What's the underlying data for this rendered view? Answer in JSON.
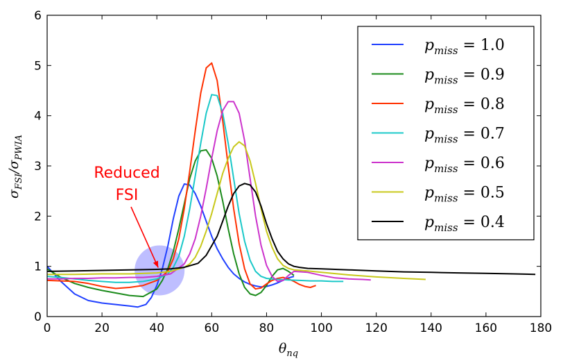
{
  "chart_data": {
    "type": "line",
    "xlim": [
      0,
      180
    ],
    "ylim": [
      0,
      6
    ],
    "xticks": [
      0,
      20,
      40,
      60,
      80,
      100,
      120,
      140,
      160,
      180
    ],
    "yticks": [
      0,
      1,
      2,
      3,
      4,
      5,
      6
    ],
    "xlabel": "θ_nq",
    "ylabel": "σ_FSI/σ_PWIA",
    "grid": false,
    "legend_placement": "top-right",
    "series": [
      {
        "name": "p_miss = 1.0",
        "color": "#1f3fff",
        "x": [
          0,
          5,
          10,
          15,
          20,
          25,
          30,
          33,
          36,
          38,
          40,
          42,
          44,
          46,
          48,
          50,
          52,
          54,
          56,
          58,
          60,
          62,
          64,
          66,
          68,
          70,
          72,
          74,
          76,
          78,
          80,
          82,
          84,
          86,
          88,
          90
        ],
        "y": [
          1.0,
          0.7,
          0.45,
          0.32,
          0.27,
          0.24,
          0.21,
          0.19,
          0.24,
          0.38,
          0.62,
          0.95,
          1.4,
          1.95,
          2.4,
          2.64,
          2.62,
          2.45,
          2.2,
          1.9,
          1.6,
          1.35,
          1.15,
          0.98,
          0.85,
          0.76,
          0.69,
          0.64,
          0.61,
          0.59,
          0.6,
          0.63,
          0.67,
          0.72,
          0.77,
          0.8
        ]
      },
      {
        "name": "p_miss = 0.9",
        "color": "#1a8a1a",
        "x": [
          0,
          5,
          10,
          15,
          20,
          25,
          30,
          35,
          40,
          42,
          44,
          46,
          48,
          50,
          52,
          54,
          56,
          58,
          60,
          62,
          64,
          66,
          68,
          70,
          72,
          74,
          76,
          78,
          80,
          82,
          84,
          86,
          88,
          90
        ],
        "y": [
          0.95,
          0.78,
          0.66,
          0.58,
          0.52,
          0.47,
          0.42,
          0.4,
          0.55,
          0.72,
          0.95,
          1.3,
          1.75,
          2.25,
          2.75,
          3.1,
          3.3,
          3.32,
          3.15,
          2.8,
          2.3,
          1.75,
          1.25,
          0.85,
          0.58,
          0.45,
          0.42,
          0.48,
          0.62,
          0.8,
          0.93,
          0.96,
          0.9,
          0.82
        ]
      },
      {
        "name": "p_miss = 0.8",
        "color": "#ff3000",
        "x": [
          0,
          5,
          10,
          15,
          20,
          25,
          30,
          35,
          40,
          44,
          46,
          48,
          50,
          52,
          54,
          56,
          58,
          60,
          62,
          64,
          66,
          68,
          70,
          72,
          74,
          76,
          78,
          80,
          82,
          84,
          86,
          88,
          90,
          92,
          94,
          96,
          98
        ],
        "y": [
          0.72,
          0.71,
          0.7,
          0.66,
          0.6,
          0.56,
          0.58,
          0.62,
          0.72,
          0.9,
          1.15,
          1.55,
          2.15,
          2.9,
          3.7,
          4.45,
          4.95,
          5.05,
          4.7,
          3.9,
          3.0,
          2.15,
          1.45,
          0.95,
          0.65,
          0.55,
          0.57,
          0.65,
          0.72,
          0.76,
          0.78,
          0.75,
          0.7,
          0.64,
          0.6,
          0.58,
          0.62
        ]
      },
      {
        "name": "p_miss = 0.7",
        "color": "#19c8c8",
        "x": [
          0,
          5,
          10,
          15,
          20,
          25,
          30,
          35,
          40,
          44,
          46,
          48,
          50,
          52,
          54,
          56,
          58,
          60,
          62,
          64,
          66,
          68,
          70,
          72,
          74,
          76,
          78,
          80,
          84,
          88,
          92,
          96,
          100,
          104,
          108
        ],
        "y": [
          0.8,
          0.78,
          0.75,
          0.72,
          0.7,
          0.68,
          0.68,
          0.7,
          0.75,
          0.85,
          0.98,
          1.2,
          1.6,
          2.15,
          2.8,
          3.45,
          4.05,
          4.42,
          4.4,
          4.05,
          3.45,
          2.75,
          2.05,
          1.5,
          1.12,
          0.9,
          0.8,
          0.76,
          0.74,
          0.73,
          0.72,
          0.71,
          0.71,
          0.7,
          0.7
        ]
      },
      {
        "name": "p_miss = 0.6",
        "color": "#cc33cc",
        "x": [
          0,
          5,
          10,
          15,
          20,
          25,
          30,
          35,
          40,
          45,
          50,
          52,
          54,
          56,
          58,
          60,
          62,
          64,
          66,
          68,
          70,
          72,
          74,
          76,
          78,
          80,
          82,
          84,
          86,
          88,
          90,
          95,
          100,
          105,
          110,
          115,
          118
        ],
        "y": [
          0.75,
          0.75,
          0.76,
          0.76,
          0.77,
          0.77,
          0.78,
          0.78,
          0.8,
          0.85,
          1.05,
          1.25,
          1.55,
          2.0,
          2.55,
          3.15,
          3.7,
          4.1,
          4.28,
          4.28,
          4.05,
          3.5,
          2.75,
          2.0,
          1.42,
          1.02,
          0.8,
          0.7,
          0.72,
          0.82,
          0.9,
          0.88,
          0.82,
          0.77,
          0.75,
          0.74,
          0.73
        ]
      },
      {
        "name": "p_miss = 0.5",
        "color": "#c8c81a",
        "x": [
          0,
          10,
          20,
          30,
          40,
          45,
          50,
          52,
          54,
          56,
          58,
          60,
          62,
          64,
          66,
          68,
          70,
          72,
          74,
          76,
          78,
          80,
          82,
          84,
          86,
          88,
          90,
          95,
          100,
          110,
          120,
          130,
          138
        ],
        "y": [
          0.84,
          0.84,
          0.85,
          0.85,
          0.87,
          0.9,
          0.98,
          1.05,
          1.18,
          1.4,
          1.7,
          2.05,
          2.45,
          2.85,
          3.15,
          3.38,
          3.48,
          3.4,
          3.1,
          2.65,
          2.15,
          1.7,
          1.38,
          1.15,
          1.02,
          0.96,
          0.93,
          0.91,
          0.88,
          0.83,
          0.79,
          0.76,
          0.74
        ]
      },
      {
        "name": "p_miss = 0.4",
        "color": "#000000",
        "x": [
          0,
          10,
          20,
          30,
          40,
          45,
          50,
          55,
          58,
          62,
          64,
          66,
          68,
          70,
          72,
          74,
          76,
          78,
          80,
          82,
          84,
          86,
          88,
          90,
          92,
          95,
          100,
          110,
          120,
          130,
          140,
          150,
          160,
          170,
          178
        ],
        "y": [
          0.9,
          0.91,
          0.92,
          0.93,
          0.94,
          0.95,
          0.98,
          1.06,
          1.22,
          1.6,
          1.9,
          2.2,
          2.45,
          2.6,
          2.65,
          2.62,
          2.48,
          2.2,
          1.85,
          1.55,
          1.3,
          1.15,
          1.05,
          1.0,
          0.98,
          0.96,
          0.95,
          0.93,
          0.91,
          0.89,
          0.88,
          0.87,
          0.86,
          0.85,
          0.84
        ]
      }
    ],
    "annotation": {
      "lines": [
        "Reduced",
        "FSI"
      ],
      "color": "#ff0000",
      "circle_center": [
        41,
        0.92
      ],
      "circle_color": "#7d7dff"
    }
  }
}
